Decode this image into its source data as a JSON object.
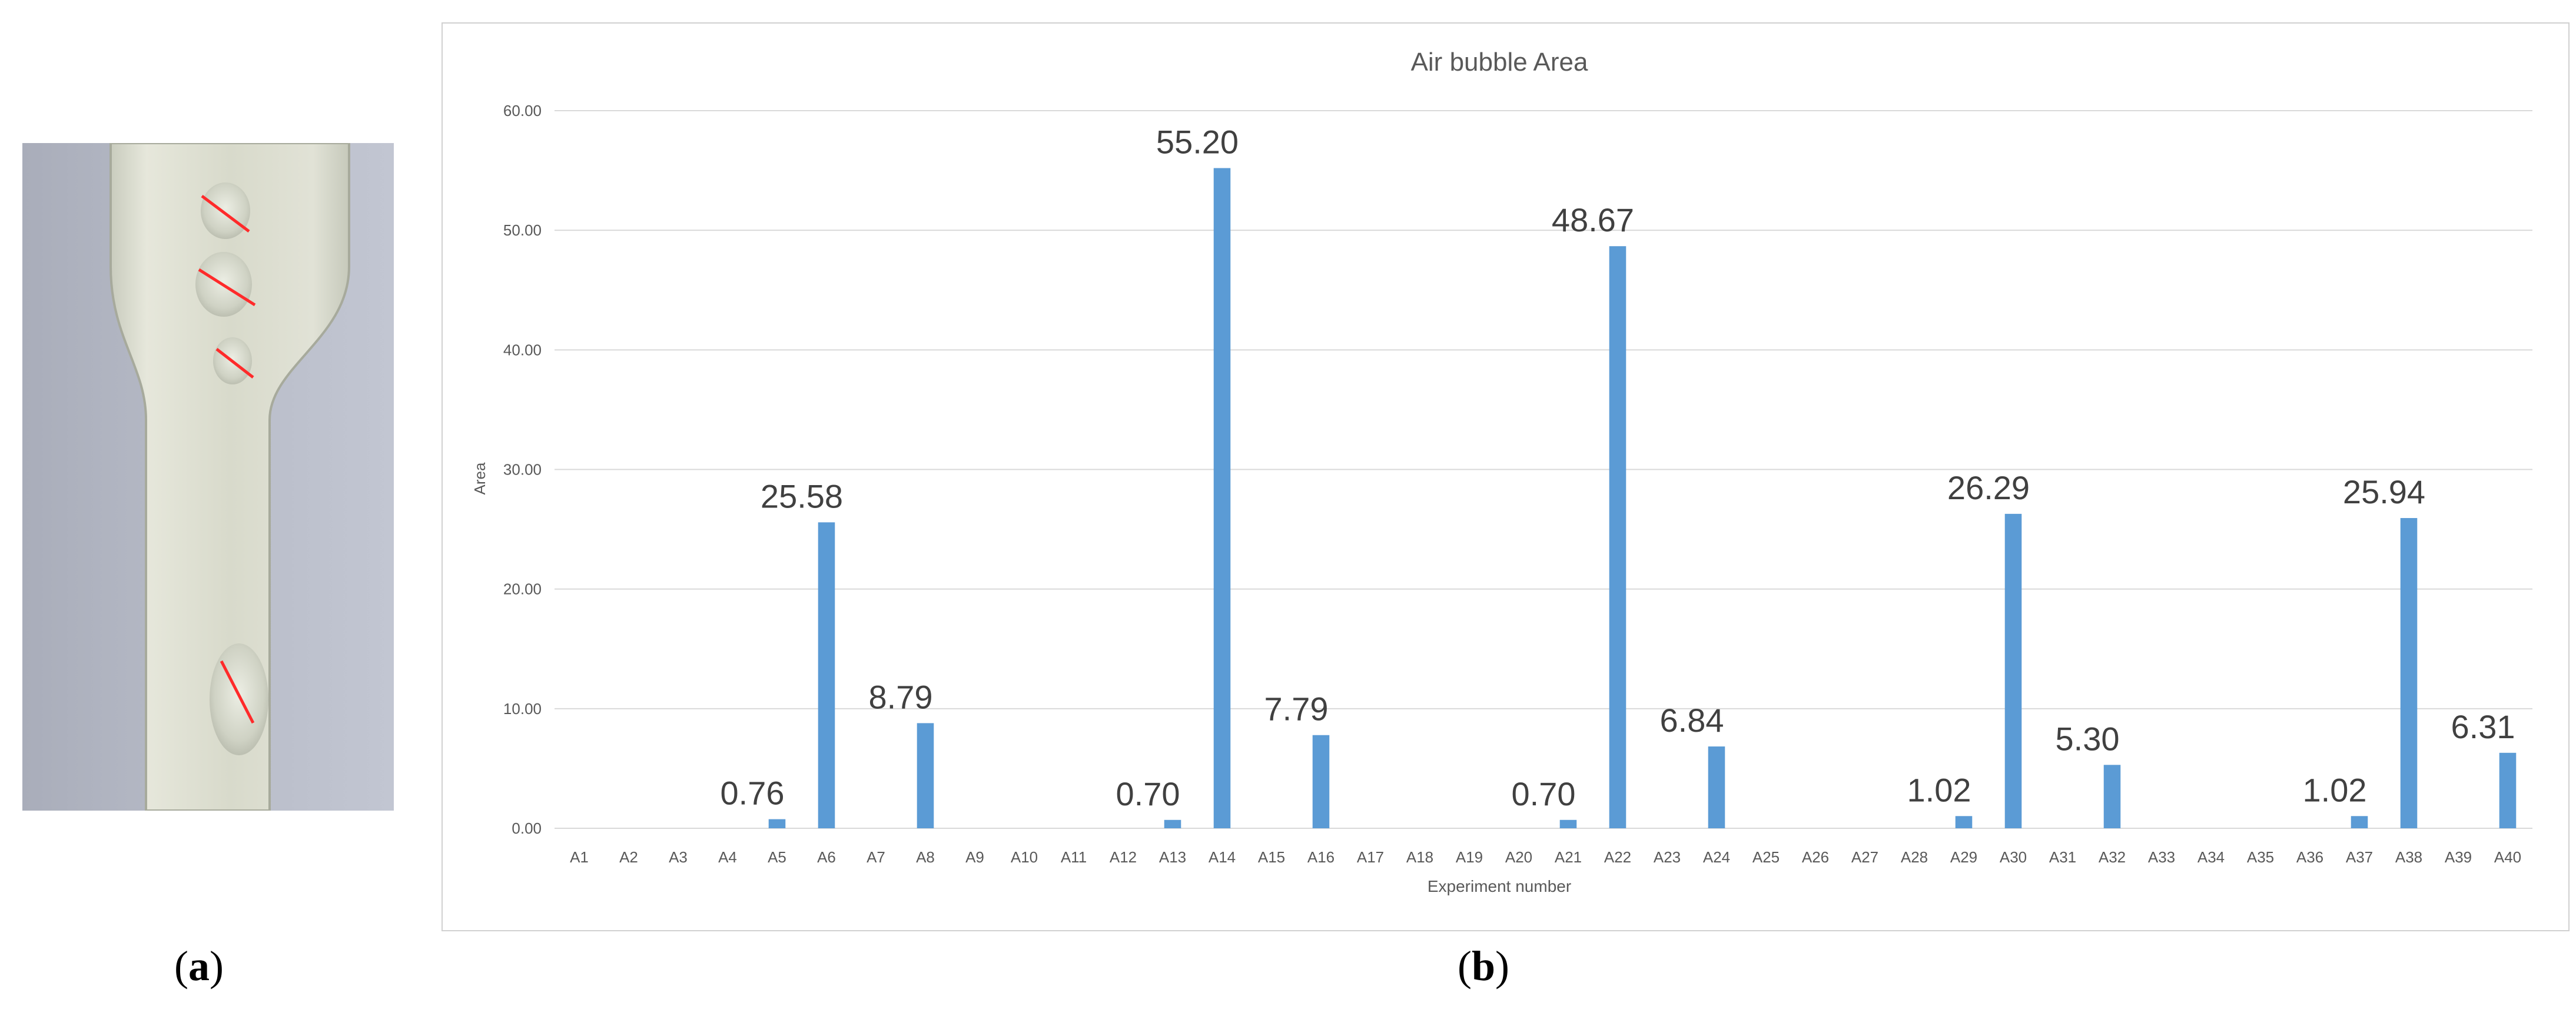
{
  "panels": {
    "a_open": "(",
    "a_letter": "a",
    "a_close": ")",
    "b_open": "(",
    "b_letter": "b",
    "b_close": ")"
  },
  "colors": {
    "bar": "#5B9BD5",
    "grid": "#d9d9d9",
    "axis_text": "#595959",
    "marker": "#ff2a2a"
  },
  "chart_data": {
    "type": "bar",
    "title": "Air bubble Area",
    "xlabel": "Experiment number",
    "ylabel": "Area",
    "ylim": [
      0,
      60
    ],
    "yticks": [
      "0.00",
      "10.00",
      "20.00",
      "30.00",
      "40.00",
      "50.00",
      "60.00"
    ],
    "grid": true,
    "legend": "none",
    "categories": [
      "A1",
      "A2",
      "A3",
      "A4",
      "A5",
      "A6",
      "A7",
      "A8",
      "A9",
      "A10",
      "A11",
      "A12",
      "A13",
      "A14",
      "A15",
      "A16",
      "A17",
      "A18",
      "A19",
      "A20",
      "A21",
      "A22",
      "A23",
      "A24",
      "A25",
      "A26",
      "A27",
      "A28",
      "A29",
      "A30",
      "A31",
      "A32",
      "A33",
      "A34",
      "A35",
      "A36",
      "A37",
      "A38",
      "A39",
      "A40"
    ],
    "values": [
      0,
      0,
      0,
      0,
      0.76,
      25.58,
      0,
      8.79,
      0,
      0,
      0,
      0,
      0.7,
      55.2,
      0,
      7.79,
      0,
      0,
      0,
      0,
      0.7,
      48.67,
      0,
      6.84,
      0,
      0,
      0,
      0,
      1.02,
      26.29,
      0,
      5.3,
      0,
      0,
      0,
      0,
      1.02,
      25.94,
      0,
      6.31
    ],
    "data_labels": [
      "",
      "",
      "",
      "",
      "0.76",
      "25.58",
      "",
      "8.79",
      "",
      "",
      "",
      "",
      "0.70",
      "55.20",
      "",
      "7.79",
      "",
      "",
      "",
      "",
      "0.70",
      "48.67",
      "",
      "6.84",
      "",
      "",
      "",
      "",
      "1.02",
      "26.29",
      "",
      "5.30",
      "",
      "",
      "",
      "",
      "1.02",
      "25.94",
      "",
      "6.31"
    ]
  }
}
